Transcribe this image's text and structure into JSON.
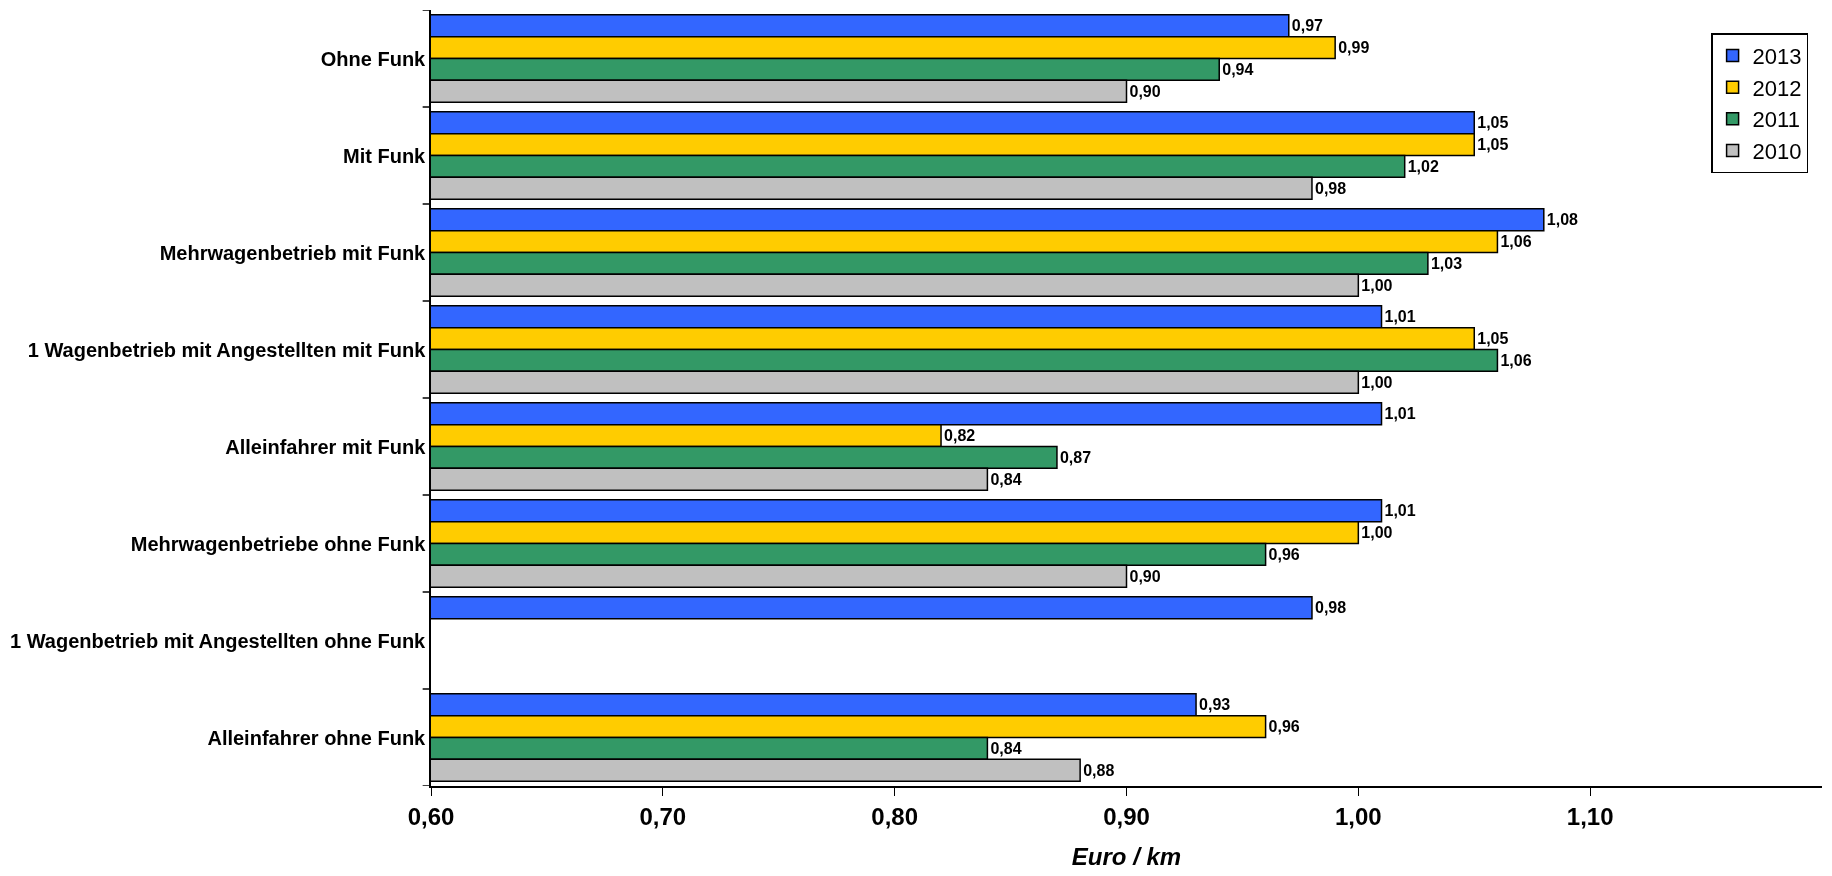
{
  "chart_data": {
    "type": "bar",
    "orientation": "horizontal",
    "xlabel": "Euro / km",
    "categories": [
      "Ohne Funk",
      "Mit Funk",
      "Mehrwagenbetrieb mit Funk",
      "1 Wagenbetrieb mit Angestellten mit Funk",
      "Alleinfahrer mit Funk",
      "Mehrwagenbetriebe ohne Funk",
      "1 Wagenbetrieb mit Angestellten ohne Funk",
      "Alleinfahrer ohne Funk"
    ],
    "series": [
      {
        "name": "2013",
        "color": "#3366ff",
        "values": [
          0.97,
          1.05,
          1.08,
          1.01,
          1.01,
          1.01,
          0.98,
          0.93
        ],
        "value_labels": [
          "0,97",
          "1,05",
          "1,08",
          "1,01",
          "1,01",
          "1,01",
          "0,98",
          "0,93"
        ]
      },
      {
        "name": "2012",
        "color": "#ffcc00",
        "values": [
          0.99,
          1.05,
          1.06,
          1.05,
          0.82,
          1.0,
          null,
          0.96
        ],
        "value_labels": [
          "0,99",
          "1,05",
          "1,06",
          "1,05",
          "0,82",
          "1,00",
          null,
          "0,96"
        ]
      },
      {
        "name": "2011",
        "color": "#339966",
        "values": [
          0.94,
          1.02,
          1.03,
          1.06,
          0.87,
          0.96,
          null,
          0.84
        ],
        "value_labels": [
          "0,94",
          "1,02",
          "1,03",
          "1,06",
          "0,87",
          "0,96",
          null,
          "0,84"
        ]
      },
      {
        "name": "2010",
        "color": "#c0c0c0",
        "values": [
          0.9,
          0.98,
          1.0,
          1.0,
          0.84,
          0.9,
          null,
          0.88
        ],
        "value_labels": [
          "0,90",
          "0,98",
          "1,00",
          "1,00",
          "0,84",
          "0,90",
          null,
          "0,88"
        ]
      }
    ],
    "xlim": [
      0.6,
      1.2
    ],
    "xticks": [
      {
        "value": 0.6,
        "label": "0,60"
      },
      {
        "value": 0.7,
        "label": "0,70"
      },
      {
        "value": 0.8,
        "label": "0,80"
      },
      {
        "value": 0.9,
        "label": "0,90"
      },
      {
        "value": 1.0,
        "label": "1,00"
      },
      {
        "value": 1.1,
        "label": "1,10"
      }
    ],
    "grid": false,
    "legend": "top right"
  }
}
